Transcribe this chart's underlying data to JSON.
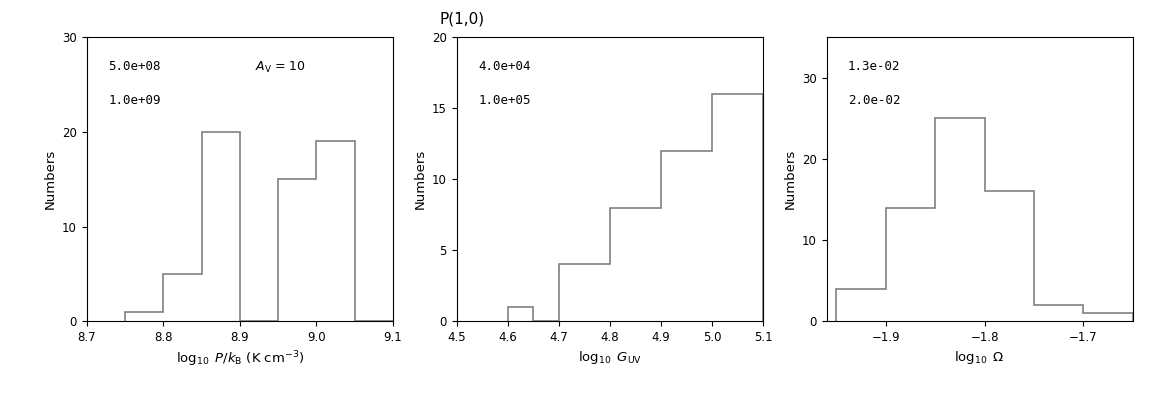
{
  "title": "P(1,0)",
  "panel1": {
    "bin_edges": [
      8.75,
      8.8,
      8.85,
      8.9,
      8.95,
      9.0,
      9.05,
      9.1
    ],
    "counts": [
      1,
      5,
      20,
      0,
      15,
      19,
      0
    ],
    "xlim": [
      8.7,
      9.1
    ],
    "ylim": [
      0,
      30
    ],
    "xlabel": "$\\log_{10}$ $P/k_{\\rm B}$ (K cm$^{-3}$)",
    "ylabel": "Numbers",
    "yticks": [
      0,
      10,
      20,
      30
    ],
    "xticks": [
      8.7,
      8.8,
      8.9,
      9.0,
      9.1
    ],
    "ann1": "5.0e+08",
    "ann2": "1.0e+09",
    "ann3": "$A_{\\rm V}$ = 10"
  },
  "panel2": {
    "bin_edges": [
      4.6,
      4.65,
      4.7,
      4.8,
      4.9,
      5.0,
      5.1
    ],
    "counts": [
      1,
      0,
      4,
      8,
      12,
      16
    ],
    "xlim": [
      4.5,
      5.1
    ],
    "ylim": [
      0,
      20
    ],
    "xlabel": "$\\log_{10}$ $G_{\\rm UV}$",
    "ylabel": "Numbers",
    "yticks": [
      0,
      5,
      10,
      15,
      20
    ],
    "xticks": [
      4.5,
      4.6,
      4.7,
      4.8,
      4.9,
      5.0,
      5.1
    ],
    "ann1": "4.0e+04",
    "ann2": "1.0e+05",
    "ann3": null
  },
  "panel3": {
    "bin_edges": [
      -1.95,
      -1.9,
      -1.85,
      -1.8,
      -1.75,
      -1.7,
      -1.65
    ],
    "counts": [
      4,
      14,
      25,
      16,
      2,
      1
    ],
    "xlim": [
      -1.96,
      -1.65
    ],
    "ylim": [
      0,
      35
    ],
    "xlabel": "$\\log_{10}$ $\\Omega$",
    "ylabel": "Numbers",
    "yticks": [
      0,
      10,
      20,
      30
    ],
    "xticks": [
      -1.9,
      -1.8,
      -1.7
    ],
    "ann1": "1.3e-02",
    "ann2": "2.0e-02",
    "ann3": null
  },
  "hist_color": "#808080",
  "hist_lw": 1.2,
  "bg_color": "#ffffff"
}
